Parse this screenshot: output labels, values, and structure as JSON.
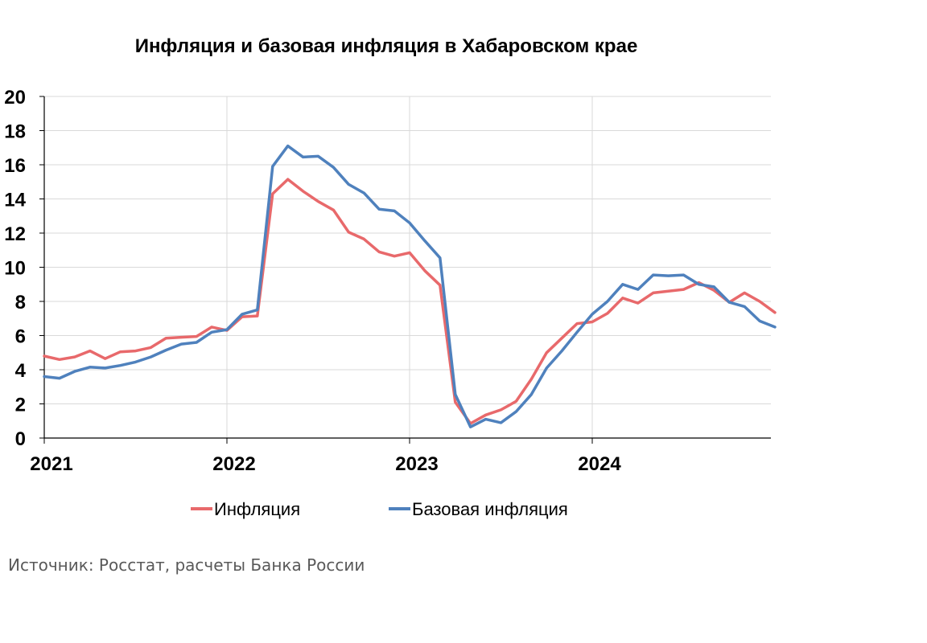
{
  "chart_data": {
    "type": "line",
    "title": "Инфляция и базовая инфляция в Хабаровском крае",
    "xlabel": "",
    "ylabel": "",
    "ylim": [
      0,
      20
    ],
    "yticks": [
      "0",
      "2",
      "4",
      "6",
      "8",
      "10",
      "12",
      "14",
      "16",
      "18",
      "20"
    ],
    "xticks": [
      "2021",
      "2022",
      "2023",
      "2024"
    ],
    "x_start": "2021-01",
    "grid": true,
    "legend_position": "bottom",
    "series": [
      {
        "name": "Инфляция",
        "color": "#e8696b",
        "values": [
          4.8,
          4.6,
          4.75,
          5.1,
          4.65,
          5.05,
          5.1,
          5.3,
          5.85,
          5.9,
          5.95,
          6.5,
          6.3,
          7.1,
          7.15,
          14.3,
          15.15,
          14.45,
          13.85,
          13.35,
          12.05,
          11.65,
          10.9,
          10.65,
          10.85,
          9.8,
          8.95,
          2.1,
          0.85,
          1.35,
          1.65,
          2.15,
          3.45,
          5.0,
          5.85,
          6.7,
          6.8,
          7.3,
          8.2,
          7.9,
          8.5,
          8.6,
          8.7,
          9.1,
          8.65,
          7.95,
          8.5,
          8.0,
          7.35
        ]
      },
      {
        "name": "Базовая инфляция",
        "color": "#4f81bd",
        "values": [
          3.6,
          3.5,
          3.9,
          4.15,
          4.1,
          4.25,
          4.45,
          4.75,
          5.15,
          5.5,
          5.6,
          6.2,
          6.35,
          7.25,
          7.5,
          15.9,
          17.1,
          16.45,
          16.5,
          15.85,
          14.85,
          14.35,
          13.4,
          13.3,
          12.6,
          11.55,
          10.55,
          2.55,
          0.65,
          1.1,
          0.9,
          1.55,
          2.55,
          4.1,
          5.1,
          6.2,
          7.25,
          8.0,
          9.0,
          8.7,
          9.55,
          9.5,
          9.55,
          9.0,
          8.85,
          7.95,
          7.7,
          6.85,
          6.5
        ]
      }
    ]
  },
  "source": "Источник: Росстат, расчеты Банка России"
}
